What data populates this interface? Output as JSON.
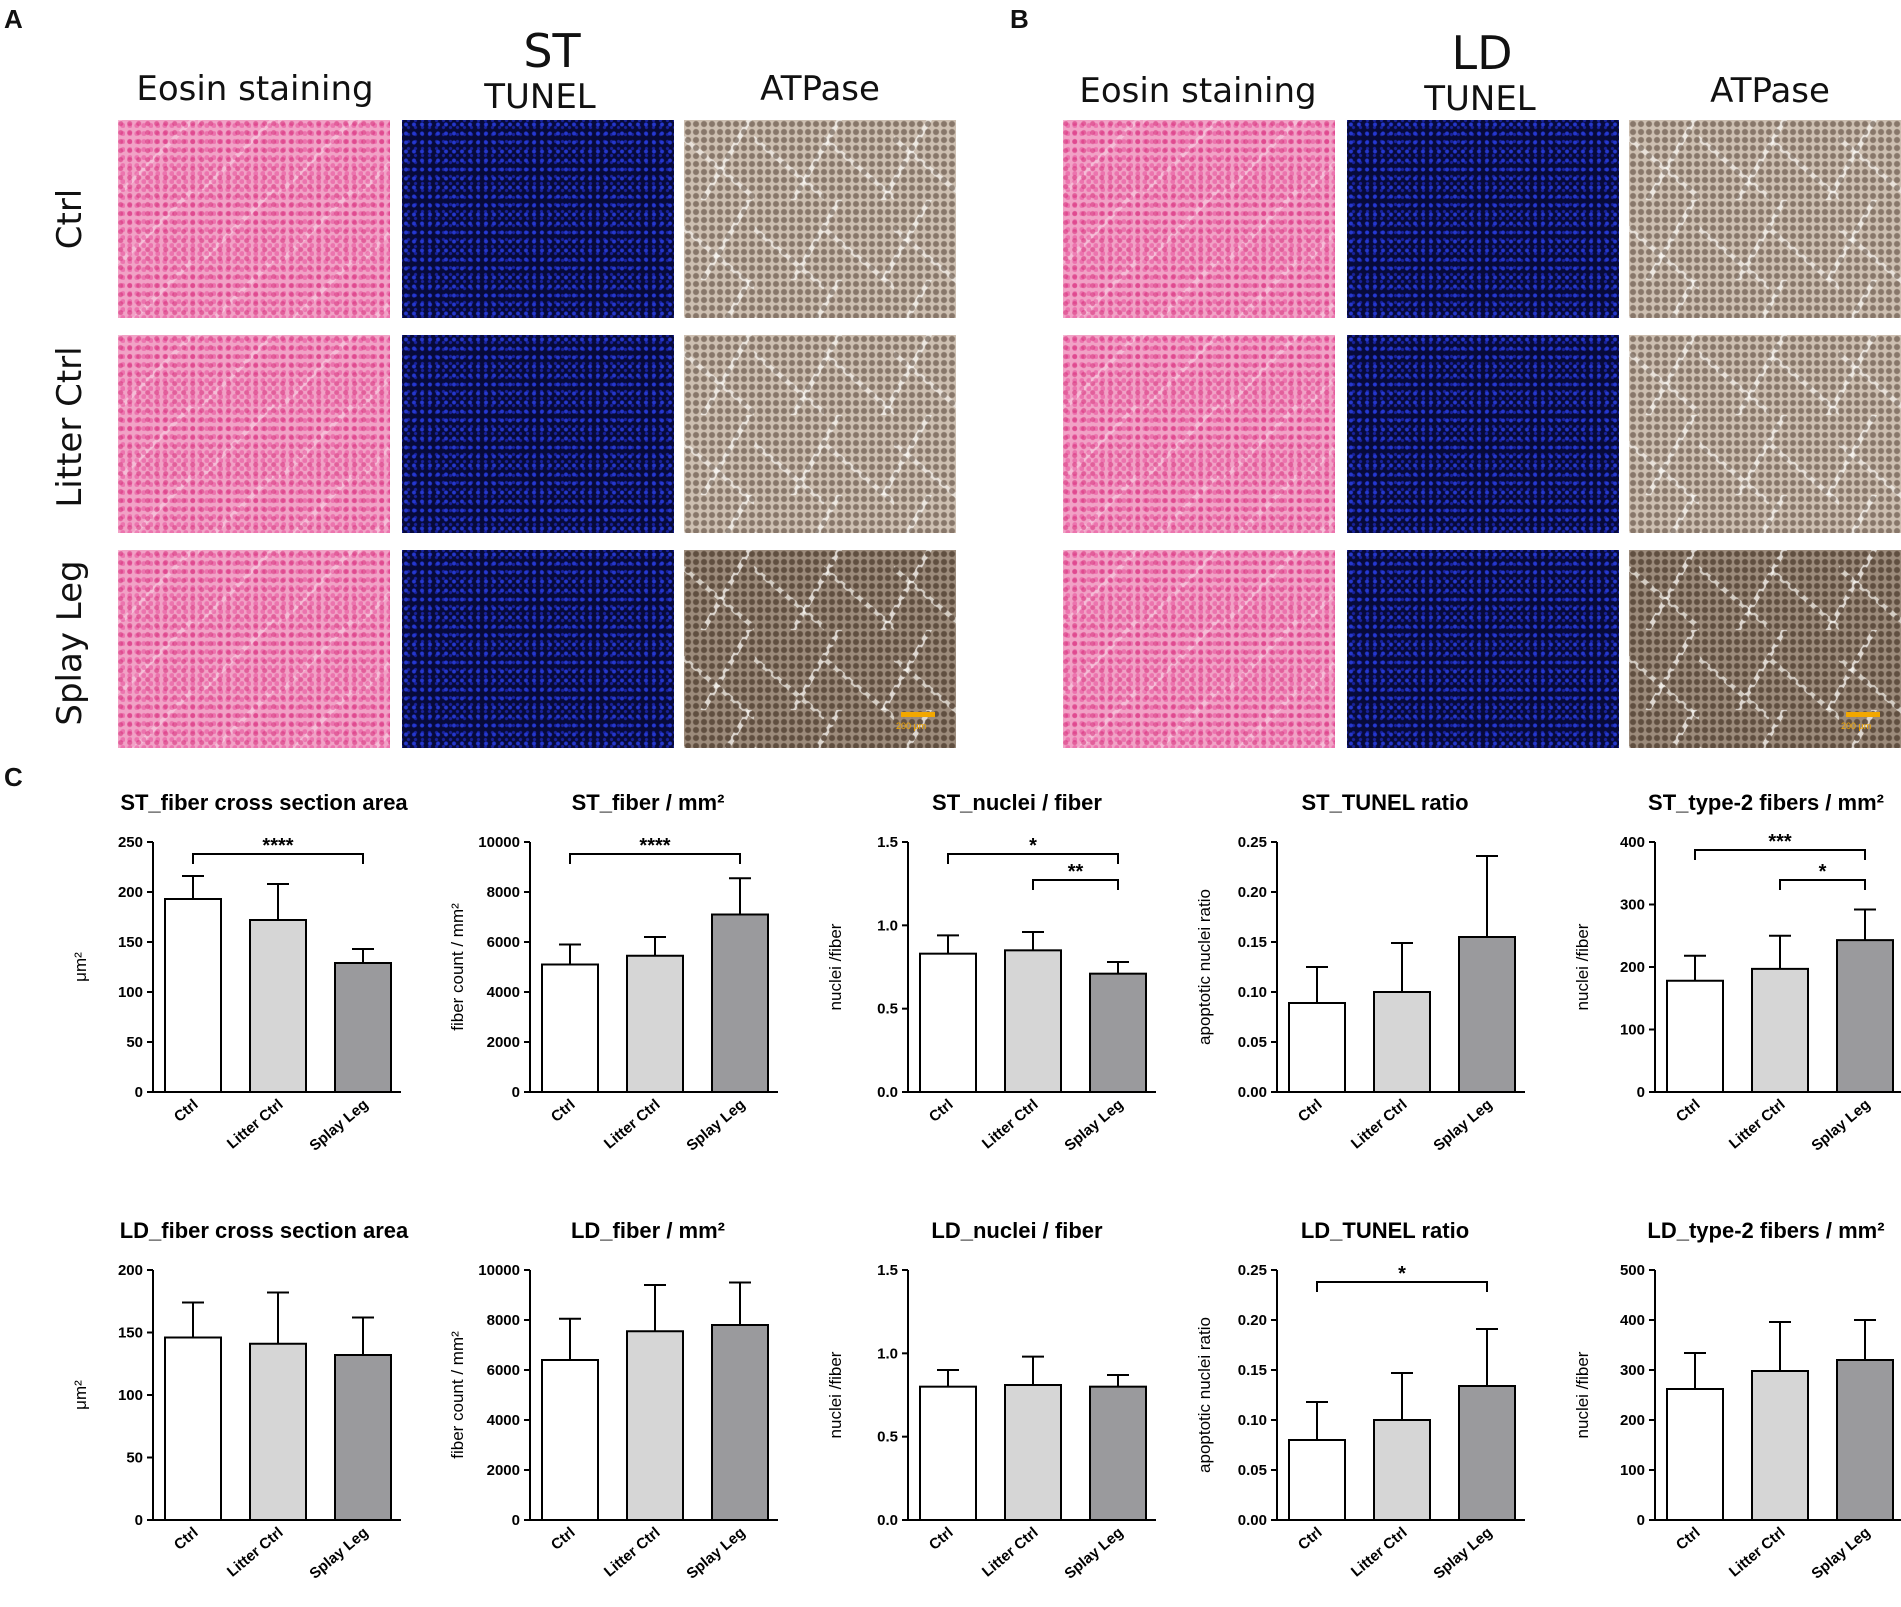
{
  "panels": {
    "a": "A",
    "b": "B",
    "c": "C"
  },
  "histology": {
    "column_headers": [
      "Eosin staining",
      "TUNEL",
      "ATPase"
    ],
    "row_headers": [
      "Ctrl",
      "Litter Ctrl",
      "Splay Leg"
    ],
    "tissues": [
      "ST",
      "LD"
    ],
    "scale_label": "200 μm",
    "colors": {
      "eosin": "#f3a8c9",
      "tunel": "#0b0f49",
      "atpase": "#d8cfc3"
    }
  },
  "chart_data": [
    {
      "type": "bar",
      "title": "ST_fiber cross section area",
      "ylabel": "μm²",
      "categories": [
        "Ctrl",
        "Litter Ctrl",
        "Splay Leg"
      ],
      "values": [
        193,
        172,
        129
      ],
      "errors": [
        23,
        36,
        14
      ],
      "ylim": [
        0,
        250
      ],
      "yticks": [
        0,
        50,
        100,
        150,
        200,
        250
      ],
      "tick_format": "0",
      "significance": [
        {
          "from": 0,
          "to": 2,
          "label": "****"
        }
      ],
      "colors": [
        "#ffffff",
        "#d6d6d6",
        "#9a9a9d"
      ]
    },
    {
      "type": "bar",
      "title": "ST_fiber / mm²",
      "ylabel": "fiber count / mm²",
      "categories": [
        "Ctrl",
        "Litter Ctrl",
        "Splay Leg"
      ],
      "values": [
        5100,
        5450,
        7100
      ],
      "errors": [
        800,
        750,
        1450
      ],
      "ylim": [
        0,
        10000
      ],
      "yticks": [
        0,
        2000,
        4000,
        6000,
        8000,
        10000
      ],
      "tick_format": "0",
      "significance": [
        {
          "from": 0,
          "to": 2,
          "label": "****"
        }
      ],
      "colors": [
        "#ffffff",
        "#d6d6d6",
        "#9a9a9d"
      ]
    },
    {
      "type": "bar",
      "title": "ST_nuclei / fiber",
      "ylabel": "nuclei /fiber",
      "categories": [
        "Ctrl",
        "Litter Ctrl",
        "Splay Leg"
      ],
      "values": [
        0.83,
        0.85,
        0.71
      ],
      "errors": [
        0.11,
        0.11,
        0.07
      ],
      "ylim": [
        0,
        1.5
      ],
      "yticks": [
        0,
        0.5,
        1.0,
        1.5
      ],
      "tick_format": "0.0",
      "significance": [
        {
          "from": 0,
          "to": 2,
          "label": "*"
        },
        {
          "from": 1,
          "to": 2,
          "label": "**"
        }
      ],
      "colors": [
        "#ffffff",
        "#d6d6d6",
        "#9a9a9d"
      ]
    },
    {
      "type": "bar",
      "title": "ST_TUNEL ratio",
      "ylabel": "apoptotic nuclei ratio",
      "categories": [
        "Ctrl",
        "Litter Ctrl",
        "Splay Leg"
      ],
      "values": [
        0.089,
        0.1,
        0.155
      ],
      "errors": [
        0.036,
        0.049,
        0.081
      ],
      "ylim": [
        0,
        0.25
      ],
      "yticks": [
        0,
        0.05,
        0.1,
        0.15,
        0.2,
        0.25
      ],
      "tick_format": "0.00",
      "significance": [],
      "colors": [
        "#ffffff",
        "#d6d6d6",
        "#9a9a9d"
      ]
    },
    {
      "type": "bar",
      "title": "ST_type-2 fibers / mm²",
      "ylabel": "nuclei /fiber",
      "categories": [
        "Ctrl",
        "Litter Ctrl",
        "Splay Leg"
      ],
      "values": [
        178,
        197,
        243
      ],
      "errors": [
        40,
        53,
        49
      ],
      "ylim": [
        0,
        400
      ],
      "yticks": [
        0,
        100,
        200,
        300,
        400
      ],
      "tick_format": "0",
      "significance": [
        {
          "from": 0,
          "to": 2,
          "label": "***"
        },
        {
          "from": 1,
          "to": 2,
          "label": "*"
        }
      ],
      "colors": [
        "#ffffff",
        "#d6d6d6",
        "#9a9a9d"
      ]
    },
    {
      "type": "bar",
      "title": "LD_fiber cross section area",
      "ylabel": "μm²",
      "categories": [
        "Ctrl",
        "Litter Ctrl",
        "Splay Leg"
      ],
      "values": [
        146,
        141,
        132
      ],
      "errors": [
        28,
        41,
        30
      ],
      "ylim": [
        0,
        200
      ],
      "yticks": [
        0,
        50,
        100,
        150,
        200
      ],
      "tick_format": "0",
      "significance": [],
      "colors": [
        "#ffffff",
        "#d6d6d6",
        "#9a9a9d"
      ]
    },
    {
      "type": "bar",
      "title": "LD_fiber / mm²",
      "ylabel": "fiber count / mm²",
      "categories": [
        "Ctrl",
        "Litter Ctrl",
        "Splay Leg"
      ],
      "values": [
        6400,
        7550,
        7800
      ],
      "errors": [
        1650,
        1850,
        1700
      ],
      "ylim": [
        0,
        10000
      ],
      "yticks": [
        0,
        2000,
        4000,
        6000,
        8000,
        10000
      ],
      "tick_format": "0",
      "significance": [],
      "colors": [
        "#ffffff",
        "#d6d6d6",
        "#9a9a9d"
      ]
    },
    {
      "type": "bar",
      "title": "LD_nuclei / fiber",
      "ylabel": "nuclei /fiber",
      "categories": [
        "Ctrl",
        "Litter Ctrl",
        "Splay Leg"
      ],
      "values": [
        0.8,
        0.81,
        0.8
      ],
      "errors": [
        0.1,
        0.17,
        0.07
      ],
      "ylim": [
        0,
        1.5
      ],
      "yticks": [
        0,
        0.5,
        1.0,
        1.5
      ],
      "tick_format": "0.0",
      "significance": [],
      "colors": [
        "#ffffff",
        "#d6d6d6",
        "#9a9a9d"
      ]
    },
    {
      "type": "bar",
      "title": "LD_TUNEL ratio",
      "ylabel": "apoptotic nuclei ratio",
      "categories": [
        "Ctrl",
        "Litter Ctrl",
        "Splay Leg"
      ],
      "values": [
        0.08,
        0.1,
        0.134
      ],
      "errors": [
        0.038,
        0.047,
        0.057
      ],
      "ylim": [
        0,
        0.25
      ],
      "yticks": [
        0,
        0.05,
        0.1,
        0.15,
        0.2,
        0.25
      ],
      "tick_format": "0.00",
      "significance": [
        {
          "from": 0,
          "to": 2,
          "label": "*"
        }
      ],
      "colors": [
        "#ffffff",
        "#d6d6d6",
        "#9a9a9d"
      ]
    },
    {
      "type": "bar",
      "title": "LD_type-2 fibers / mm²",
      "ylabel": "nuclei /fiber",
      "categories": [
        "Ctrl",
        "Litter Ctrl",
        "Splay Leg"
      ],
      "values": [
        262,
        298,
        320
      ],
      "errors": [
        72,
        98,
        80
      ],
      "ylim": [
        0,
        500
      ],
      "yticks": [
        0,
        100,
        200,
        300,
        400,
        500
      ],
      "tick_format": "0",
      "significance": [],
      "colors": [
        "#ffffff",
        "#d6d6d6",
        "#9a9a9d"
      ]
    }
  ]
}
